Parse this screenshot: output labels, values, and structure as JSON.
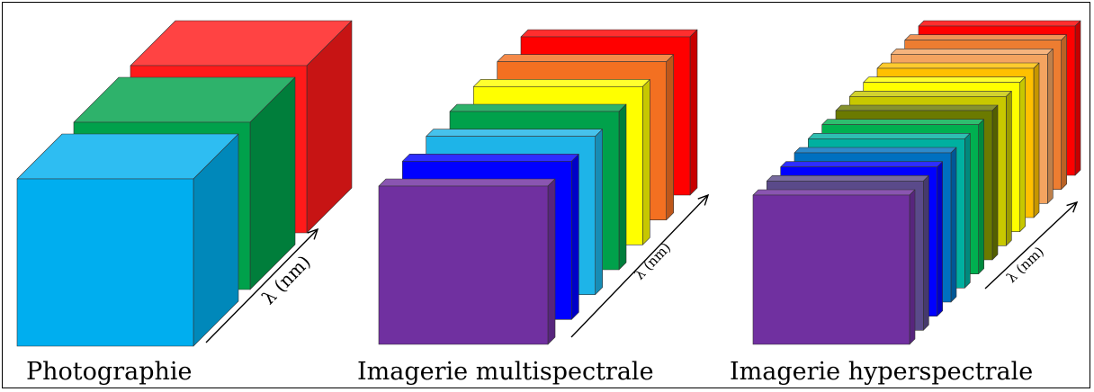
{
  "panels": [
    {
      "id": "photographie",
      "caption": "Photographie",
      "axis_label": "λ (nm)",
      "bands": [
        "#00aeef",
        "#00a14b",
        "#ff1a1a"
      ]
    },
    {
      "id": "multispectrale",
      "caption": "Imagerie multispectrale",
      "axis_label": "λ (nm)",
      "bands": [
        "#7030a0",
        "#0000ff",
        "#1eb4e8",
        "#00a14b",
        "#ffff00",
        "#f37021",
        "#ff0000"
      ]
    },
    {
      "id": "hyperspectrale",
      "caption": "Imagerie hyperspectrale",
      "axis_label": "λ (nm)",
      "bands": [
        "#7030a0",
        "#5a4a8a",
        "#0000ff",
        "#0070c0",
        "#00b0a0",
        "#00b050",
        "#6b7a00",
        "#c8c800",
        "#ffff00",
        "#ffc000",
        "#f4a460",
        "#ed7d31",
        "#ff0000"
      ]
    }
  ],
  "colors": {
    "border": "#000000",
    "background": "#ffffff"
  }
}
